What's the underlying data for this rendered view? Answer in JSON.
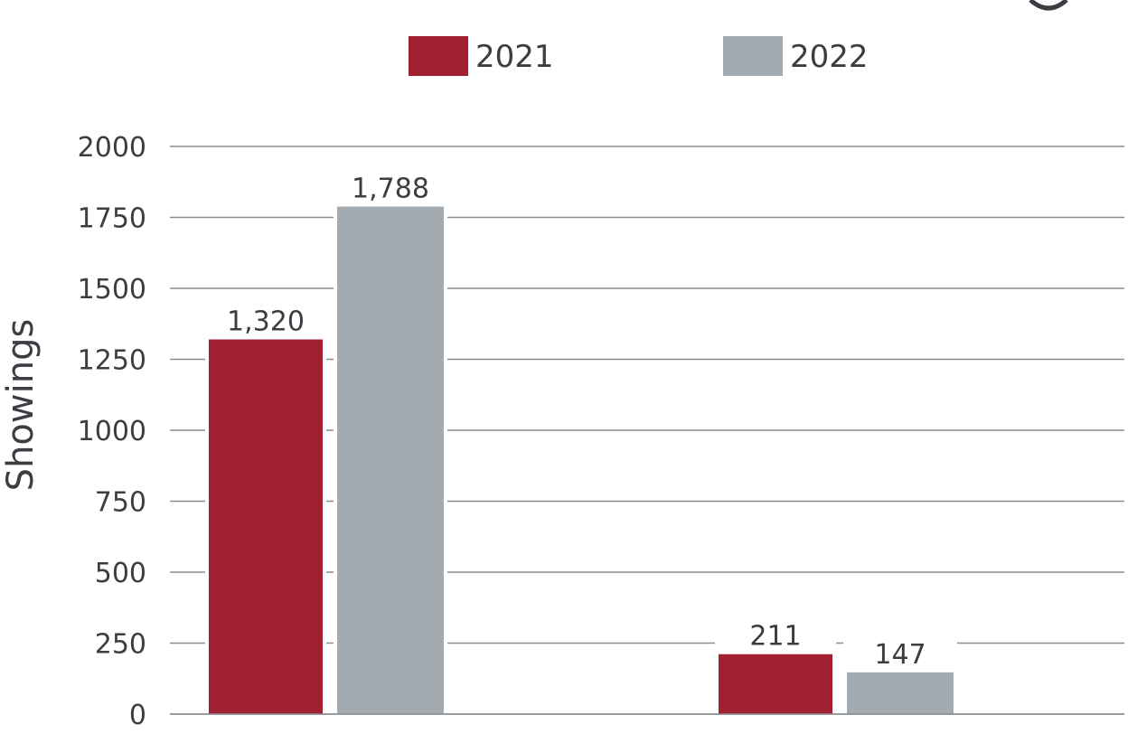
{
  "chart_data": {
    "type": "bar",
    "title": "",
    "xlabel": "",
    "ylabel": "Showings",
    "categories": [
      "",
      ""
    ],
    "series": [
      {
        "name": "2021",
        "color": "#a02232",
        "values": [
          1320,
          211
        ],
        "labels": [
          "1,320",
          "211"
        ]
      },
      {
        "name": "2022",
        "color": "#a3abb1",
        "values": [
          1788,
          147
        ],
        "labels": [
          "1,788",
          "147"
        ]
      }
    ],
    "yticks": [
      0,
      250,
      500,
      750,
      1000,
      1250,
      1500,
      1750,
      2000
    ],
    "ylim": [
      0,
      2000
    ],
    "grid": true,
    "legend_position": "top-center"
  }
}
